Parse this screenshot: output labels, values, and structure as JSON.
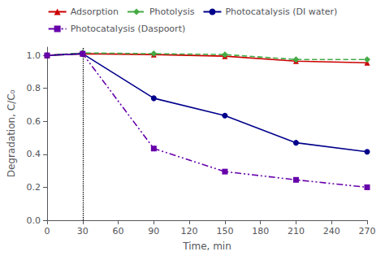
{
  "chart_data": {
    "type": "line",
    "xlabel": "Time, min",
    "ylabel": "Degradation, C/C₀",
    "x": [
      0,
      30,
      90,
      150,
      210,
      270
    ],
    "series": [
      {
        "name": "Adsorption",
        "color": "#cc0000",
        "marker": "triangle",
        "line_style": "solid",
        "values": [
          1.0,
          1.01,
          1.005,
          0.995,
          0.965,
          0.955
        ]
      },
      {
        "name": "Photolysis",
        "color": "#44aa44",
        "marker": "diamond",
        "line_style": "dashed",
        "values": [
          1.0,
          1.015,
          1.01,
          1.005,
          0.975,
          0.975
        ]
      },
      {
        "name": "Photocatalysis (DI water)",
        "color": "#00008b",
        "marker": "circle",
        "line_style": "solid",
        "values": [
          1.0,
          1.01,
          0.74,
          0.635,
          0.47,
          0.415
        ]
      },
      {
        "name": "Photocatalysis (Daspoort)",
        "color": "#6600aa",
        "marker": "square",
        "line_style": "dashdotdot",
        "values": [
          1.0,
          1.01,
          0.435,
          0.295,
          0.245,
          0.2
        ]
      }
    ],
    "vlines": [
      30
    ],
    "xlim": [
      0,
      270
    ],
    "ylim": [
      0,
      1.05
    ],
    "xticks": [
      0,
      30,
      60,
      90,
      120,
      150,
      180,
      210,
      240,
      270
    ],
    "yticks": [
      {
        "value": 0,
        "label": "0.0"
      },
      0.2,
      0.4,
      0.6,
      0.8,
      {
        "value": 1.0,
        "label": "1.0"
      }
    ],
    "grid": false,
    "legend": "top"
  }
}
